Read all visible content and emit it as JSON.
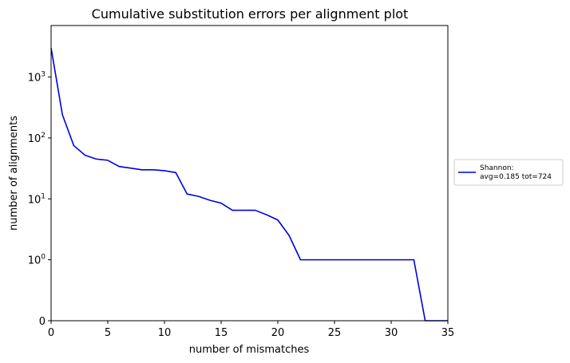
{
  "chart_data": {
    "type": "line",
    "title": "Cumulative substitution errors per alignment plot",
    "xlabel": "number of mismatches",
    "ylabel": "number of alignments",
    "xlim": [
      0,
      35
    ],
    "yscale": "symlog",
    "ylim": [
      0,
      7000
    ],
    "grid": false,
    "legend_position": "outside-right",
    "x_ticks": [
      0,
      5,
      10,
      15,
      20,
      25,
      30,
      35
    ],
    "y_ticks": [
      {
        "value": 0,
        "label": "0"
      },
      {
        "value": 1,
        "base": "10",
        "exp": "0"
      },
      {
        "value": 10,
        "base": "10",
        "exp": "1"
      },
      {
        "value": 100,
        "base": "10",
        "exp": "2"
      },
      {
        "value": 1000,
        "base": "10",
        "exp": "3"
      }
    ],
    "series": [
      {
        "name": "Shannon:",
        "name_line2": "avg=0.185 tot=724",
        "color": "#0000dd",
        "x": [
          0,
          1,
          2,
          3,
          4,
          5,
          6,
          7,
          8,
          9,
          10,
          11,
          12,
          13,
          14,
          15,
          16,
          17,
          18,
          19,
          20,
          21,
          22,
          23,
          24,
          25,
          26,
          27,
          28,
          29,
          30,
          31,
          32,
          33,
          34,
          35
        ],
        "y": [
          3000,
          240,
          75,
          52,
          45,
          43,
          34,
          32,
          30,
          30,
          29,
          27,
          12,
          11,
          9.5,
          8.5,
          6.5,
          6.5,
          6.5,
          5.5,
          4.5,
          2.5,
          1,
          1,
          1,
          1,
          1,
          1,
          1,
          1,
          1,
          1,
          1,
          0,
          0,
          0
        ]
      }
    ]
  }
}
